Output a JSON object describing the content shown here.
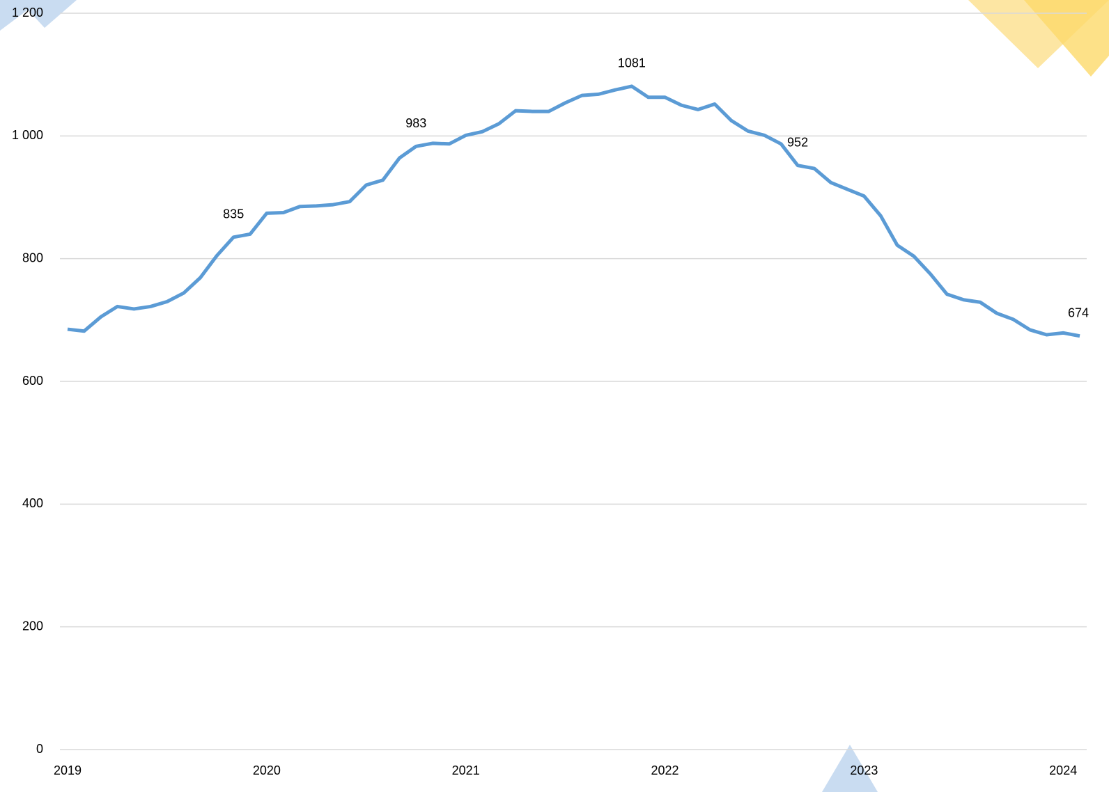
{
  "chart_data": {
    "type": "line",
    "categories": [
      "2019",
      null,
      null,
      null,
      null,
      null,
      null,
      null,
      null,
      null,
      null,
      null,
      "2020",
      null,
      null,
      null,
      null,
      null,
      null,
      null,
      null,
      null,
      null,
      null,
      "2021",
      null,
      null,
      null,
      null,
      null,
      null,
      null,
      null,
      null,
      null,
      null,
      "2022",
      null,
      null,
      null,
      null,
      null,
      null,
      null,
      null,
      null,
      null,
      null,
      "2023",
      null,
      null,
      null,
      null,
      null,
      null,
      null,
      null,
      null,
      null,
      null,
      "2024",
      null
    ],
    "series": [
      {
        "color": "#5b9bd5",
        "values": [
          685,
          682,
          705,
          722,
          718,
          722,
          730,
          744,
          769,
          805,
          835,
          840,
          874,
          875,
          885,
          886,
          888,
          893,
          920,
          928,
          964,
          983,
          988,
          987,
          1001,
          1007,
          1020,
          1041,
          1040,
          1040,
          1054,
          1066,
          1068,
          1075,
          1081,
          1063,
          1063,
          1050,
          1043,
          1052,
          1025,
          1008,
          1001,
          987,
          952,
          947,
          924,
          913,
          902,
          870,
          822,
          804,
          775,
          742,
          733,
          729,
          711,
          701,
          684,
          676,
          679,
          674
        ],
        "value_labels": [
          null,
          null,
          null,
          null,
          null,
          null,
          null,
          null,
          null,
          null,
          "835",
          null,
          null,
          null,
          null,
          null,
          null,
          null,
          null,
          null,
          null,
          "983",
          null,
          null,
          null,
          null,
          null,
          null,
          null,
          null,
          null,
          null,
          null,
          null,
          "1081",
          null,
          null,
          null,
          null,
          null,
          null,
          null,
          null,
          null,
          "952",
          null,
          null,
          null,
          null,
          null,
          null,
          null,
          null,
          null,
          null,
          null,
          null,
          null,
          null,
          null,
          null,
          "674"
        ]
      }
    ],
    "ylim": [
      0,
      1200
    ],
    "yticks": [
      0,
      200,
      400,
      600,
      800,
      {
        "value": 1000,
        "label": "1 000"
      },
      {
        "value": 1200,
        "label": "1 200"
      }
    ],
    "grid": true
  }
}
